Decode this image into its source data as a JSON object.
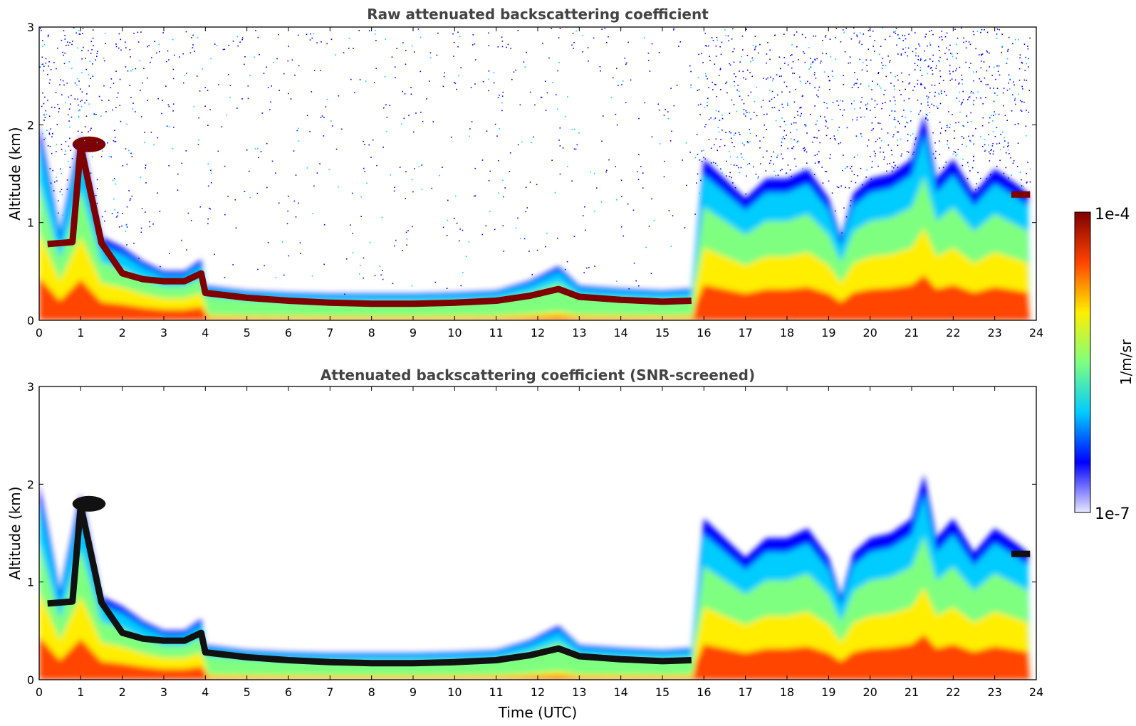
{
  "chart_data": [
    {
      "type": "heatmap",
      "title": "Raw attenuated backscattering coefficient",
      "xlabel": "",
      "ylabel": "Altitude (km)",
      "xlim": [
        0,
        24
      ],
      "ylim": [
        0,
        3
      ],
      "x_ticks": [
        "0",
        "1",
        "2",
        "3",
        "4",
        "5",
        "6",
        "7",
        "8",
        "9",
        "10",
        "11",
        "12",
        "13",
        "14",
        "15",
        "16",
        "17",
        "18",
        "19",
        "20",
        "21",
        "22",
        "23",
        "24"
      ],
      "y_ticks": [
        "0",
        "1",
        "2",
        "3"
      ],
      "screened": false,
      "layer_top_km": {
        "time_h": [
          0,
          0.5,
          1.0,
          1.5,
          2.0,
          2.5,
          3.0,
          3.5,
          3.9,
          4.0,
          5,
          6,
          7,
          8,
          9,
          10,
          11,
          11.8,
          12.5,
          13.0,
          14,
          15,
          15.7,
          16.0,
          16.5,
          17.0,
          17.5,
          18.0,
          18.5,
          19.0,
          19.3,
          19.6,
          20.0,
          20.5,
          21.0,
          21.3,
          21.6,
          22.0,
          22.5,
          23.0,
          23.5,
          23.8
        ],
        "top_km": [
          2.0,
          0.9,
          1.9,
          0.85,
          0.75,
          0.6,
          0.5,
          0.5,
          0.62,
          0.35,
          0.3,
          0.28,
          0.27,
          0.27,
          0.27,
          0.28,
          0.3,
          0.4,
          0.55,
          0.35,
          0.32,
          0.3,
          0.32,
          1.65,
          1.45,
          1.25,
          1.45,
          1.45,
          1.55,
          1.25,
          0.85,
          1.3,
          1.45,
          1.5,
          1.65,
          2.1,
          1.45,
          1.65,
          1.3,
          1.55,
          1.4,
          1.3
        ]
      },
      "dense_layer_km": {
        "time_h": [
          0.2,
          0.8,
          1.0,
          1.5,
          2.0,
          2.5,
          3.0,
          3.5,
          3.9,
          4.0,
          5,
          6,
          7,
          8,
          9,
          10,
          11,
          11.8,
          12.5,
          13.0,
          14,
          15,
          15.7
        ],
        "height_km": [
          0.78,
          0.8,
          1.78,
          0.79,
          0.48,
          0.42,
          0.4,
          0.4,
          0.48,
          0.28,
          0.23,
          0.2,
          0.18,
          0.17,
          0.17,
          0.18,
          0.2,
          0.25,
          0.32,
          0.24,
          0.21,
          0.19,
          0.2
        ]
      }
    },
    {
      "type": "heatmap",
      "title": "Attenuated backscattering coefficient (SNR-screened)",
      "xlabel": "Time (UTC)",
      "ylabel": "Altitude (km)",
      "xlim": [
        0,
        24
      ],
      "ylim": [
        0,
        3
      ],
      "x_ticks": [
        "0",
        "1",
        "2",
        "3",
        "4",
        "5",
        "6",
        "7",
        "8",
        "9",
        "10",
        "11",
        "12",
        "13",
        "14",
        "15",
        "16",
        "17",
        "18",
        "19",
        "20",
        "21",
        "22",
        "23",
        "24"
      ],
      "y_ticks": [
        "0",
        "1",
        "2",
        "3"
      ],
      "screened": true
    }
  ],
  "colorbar": {
    "label": "1/m/sr",
    "max_label": "1e-4",
    "min_label": "1e-7",
    "scale": "log",
    "colormap": "jet",
    "colors": [
      "#e8e8ff",
      "#0000ff",
      "#00ccff",
      "#7fff7f",
      "#ffee00",
      "#ff4400",
      "#7f0000"
    ]
  }
}
